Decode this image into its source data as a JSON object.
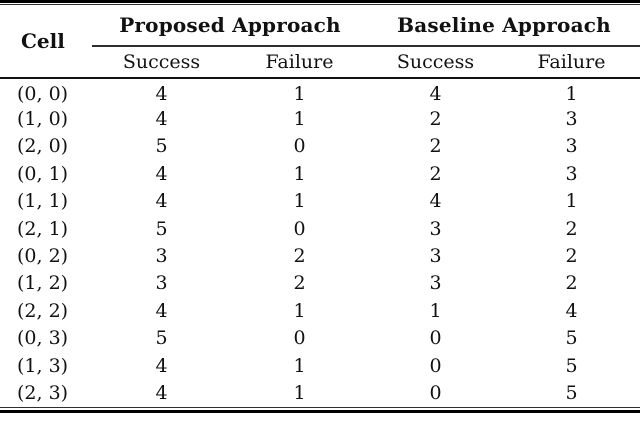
{
  "table": {
    "cell_header": "Cell",
    "groups": [
      {
        "label": "Proposed Approach"
      },
      {
        "label": "Baseline Approach"
      }
    ],
    "subheaders": [
      "Success",
      "Failure",
      "Success",
      "Failure"
    ],
    "rows": [
      {
        "cell": "(0, 0)",
        "values": [
          4,
          1,
          4,
          1
        ]
      },
      {
        "cell": "(1, 0)",
        "values": [
          4,
          1,
          2,
          3
        ]
      },
      {
        "cell": "(2, 0)",
        "values": [
          5,
          0,
          2,
          3
        ]
      },
      {
        "cell": "(0, 1)",
        "values": [
          4,
          1,
          2,
          3
        ]
      },
      {
        "cell": "(1, 1)",
        "values": [
          4,
          1,
          4,
          1
        ]
      },
      {
        "cell": "(2, 1)",
        "values": [
          5,
          0,
          3,
          2
        ]
      },
      {
        "cell": "(0, 2)",
        "values": [
          3,
          2,
          3,
          2
        ]
      },
      {
        "cell": "(1, 2)",
        "values": [
          3,
          2,
          3,
          2
        ]
      },
      {
        "cell": "(2, 2)",
        "values": [
          4,
          1,
          1,
          4
        ]
      },
      {
        "cell": "(0, 3)",
        "values": [
          5,
          0,
          0,
          5
        ]
      },
      {
        "cell": "(1, 3)",
        "values": [
          4,
          1,
          0,
          5
        ]
      },
      {
        "cell": "(2, 3)",
        "values": [
          4,
          1,
          0,
          5
        ]
      }
    ]
  },
  "colors": {
    "background": "#ffffff",
    "text": "#111111",
    "rule": "#000000"
  }
}
